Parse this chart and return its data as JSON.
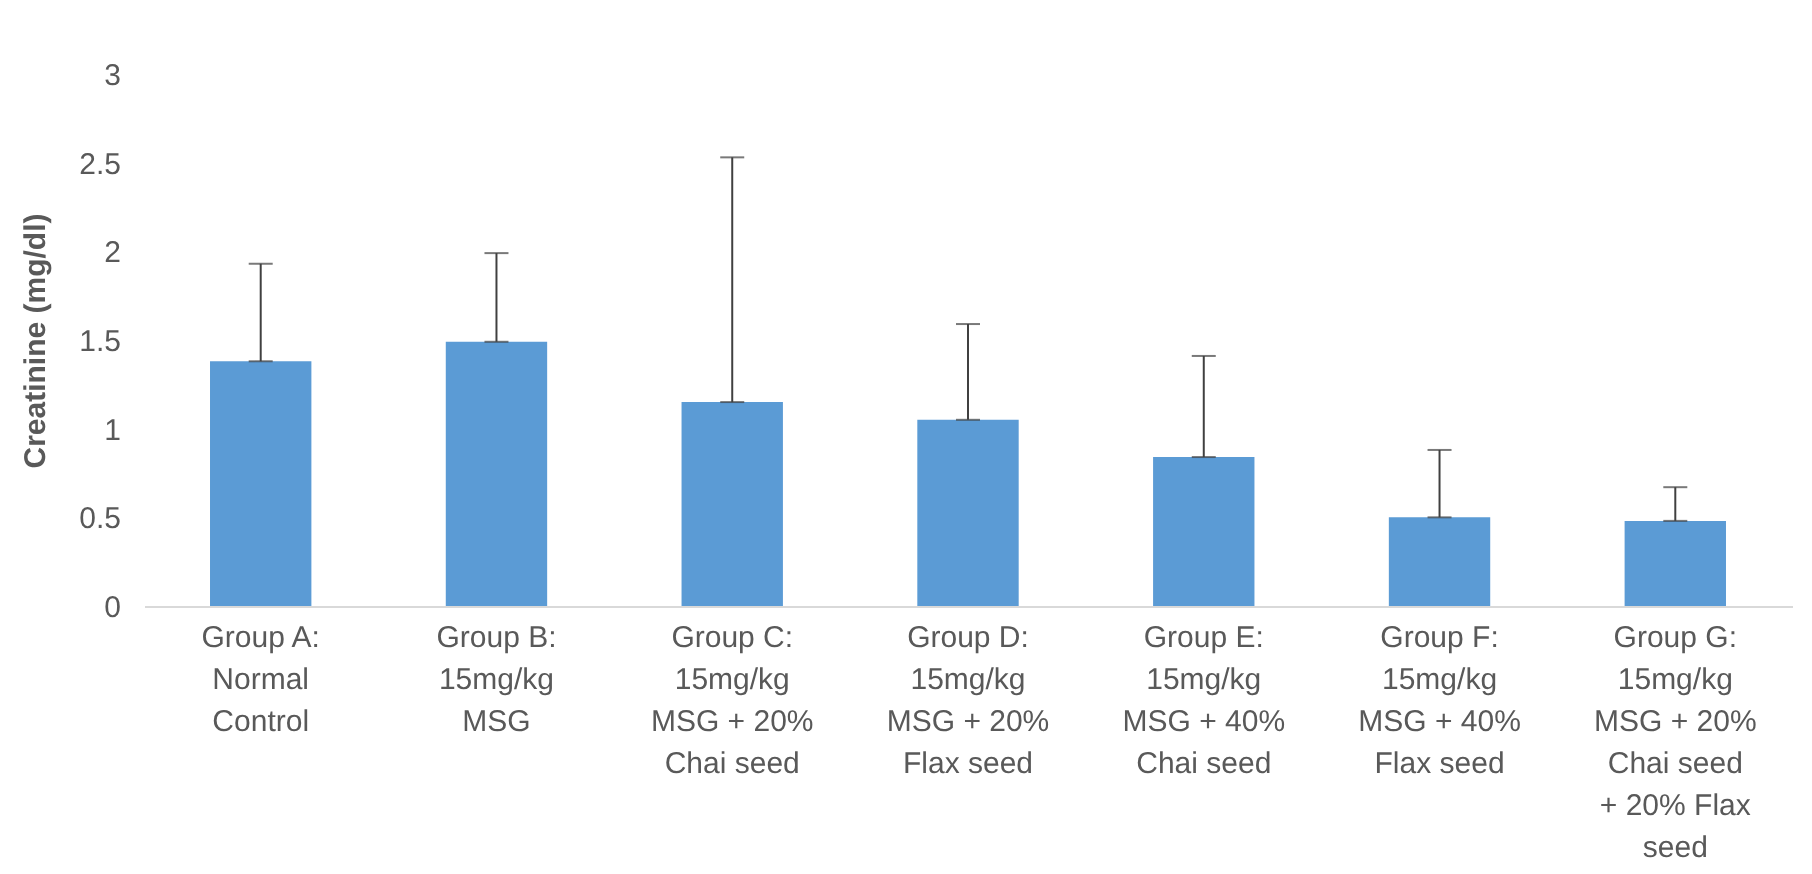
{
  "chart_data": {
    "type": "bar",
    "ylabel": "Creatinine (mg/dl)",
    "categories": [
      "Group A: Normal Control",
      "Group B: 15mg/kg MSG",
      "Group C: 15mg/kg MSG + 20% Chai seed",
      "Group D: 15mg/kg MSG + 20% Flax seed",
      "Group E: 15mg/kg MSG + 40% Chai seed",
      "Group F: 15mg/kg MSG + 40% Flax seed",
      "Group G: 15mg/kg MSG + 20% Chai seed + 20% Flax seed"
    ],
    "values": [
      1.38,
      1.49,
      1.15,
      1.05,
      0.84,
      0.5,
      0.48
    ],
    "errors": [
      [
        1.38,
        1.93
      ],
      [
        1.49,
        1.99
      ],
      [
        1.15,
        2.53
      ],
      [
        1.05,
        1.59
      ],
      [
        0.84,
        1.41
      ],
      [
        0.5,
        0.88
      ],
      [
        0.48,
        0.67
      ]
    ],
    "color": "#5b9bd5",
    "ylim": [
      0,
      3
    ],
    "yticks": [
      0,
      0.5,
      1,
      1.5,
      2,
      2.5,
      3
    ],
    "grid": false
  }
}
